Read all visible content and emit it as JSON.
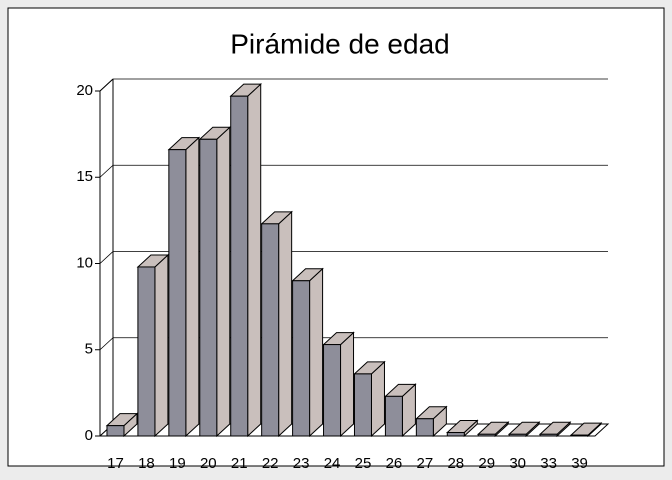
{
  "chart_data": {
    "type": "bar3d",
    "title": "Pirámide de edad",
    "categories": [
      "17",
      "18",
      "19",
      "20",
      "21",
      "22",
      "23",
      "24",
      "25",
      "26",
      "27",
      "28",
      "29",
      "30",
      "33",
      "39"
    ],
    "values": [
      0.6,
      9.8,
      16.6,
      17.2,
      19.7,
      12.3,
      9.0,
      5.3,
      3.6,
      2.3,
      1.0,
      0.2,
      0.1,
      0.1,
      0.1,
      0.05
    ],
    "ylim": [
      0,
      20
    ],
    "yticks": [
      0,
      5,
      10,
      15,
      20
    ],
    "grid": true,
    "color": "#8e8e9a",
    "side_color": "#c9bfbc"
  }
}
